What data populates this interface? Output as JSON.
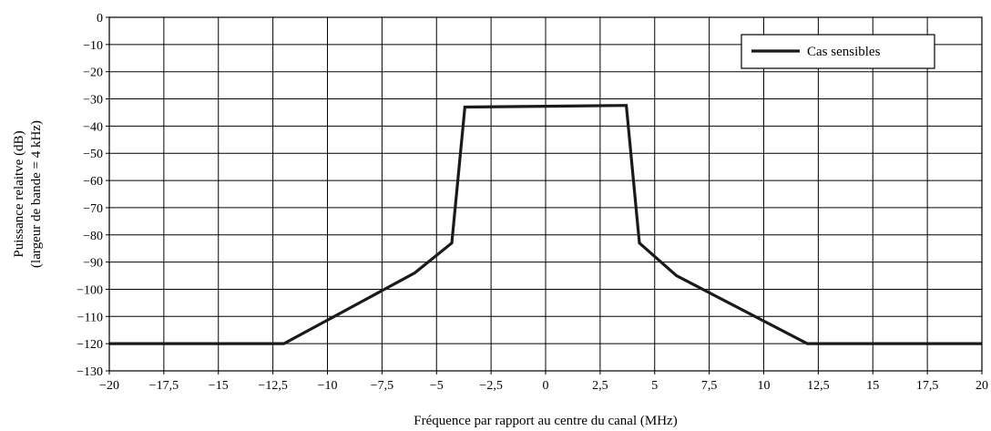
{
  "chart_data": {
    "type": "line",
    "title": "",
    "xlabel": "Fréquence par rapport au centre du canal (MHz)",
    "ylabel_lines": [
      "Puissance relaitve (dB)",
      "(largeur de bande = 4 kHz)"
    ],
    "xlim": [
      -20,
      20
    ],
    "ylim": [
      -130,
      0
    ],
    "x_ticks": [
      -20,
      -17.5,
      -15,
      -12.5,
      -10,
      -7.5,
      -5,
      -2.5,
      0,
      2.5,
      5,
      7.5,
      10,
      12.5,
      15,
      17.5,
      20
    ],
    "x_tick_labels": [
      "−20",
      "−17,5",
      "−15",
      "−12,5",
      "−10",
      "−7,5",
      "−5",
      "−2,5",
      "0",
      "2,5",
      "5",
      "7,5",
      "10",
      "12,5",
      "15",
      "17,5",
      "20"
    ],
    "y_ticks": [
      0,
      -10,
      -20,
      -30,
      -40,
      -50,
      -60,
      -70,
      -80,
      -90,
      -100,
      -110,
      -120,
      -130
    ],
    "y_tick_labels": [
      "0",
      "−10",
      "−20",
      "−30",
      "−40",
      "−50",
      "−60",
      "−70",
      "−80",
      "−90",
      "−100",
      "−110",
      "−120",
      "−130"
    ],
    "grid": true,
    "legend_position": "top-right",
    "series": [
      {
        "name": "Cas sensibles",
        "color": "#1a1a1a",
        "x": [
          -20,
          -12,
          -6,
          -4.3,
          -3.7,
          3.7,
          4.3,
          6,
          12,
          20
        ],
        "y": [
          -120,
          -120,
          -94,
          -83,
          -33,
          -32.4,
          -83,
          -95,
          -120,
          -120
        ]
      }
    ]
  }
}
